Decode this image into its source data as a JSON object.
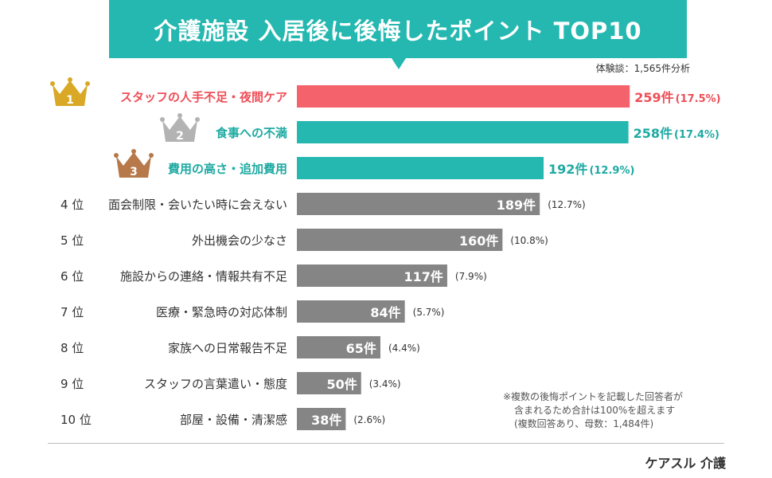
{
  "header": {
    "title": "介護施設 入居後に後悔したポイント TOP10",
    "sample": "体験談：1,565件分析"
  },
  "chart_data": {
    "type": "bar",
    "orientation": "horizontal",
    "title": "介護施設 入居後に後悔したポイント TOP10",
    "rank_suffix": "位",
    "count_unit": "件",
    "categories": [
      "スタッフの人手不足・夜間ケア",
      "食事への不満",
      "費用の高さ・追加費用",
      "面会制限・会いたい時に会えない",
      "外出機会の少なさ",
      "施設からの連絡・情報共有不足",
      "医療・緊急時の対応体制",
      "家族への日常報告不足",
      "スタッフの言葉遣い・態度",
      "部屋・設備・清潔感"
    ],
    "ranks": [
      1,
      2,
      3,
      4,
      5,
      6,
      7,
      8,
      9,
      10
    ],
    "values": [
      259,
      258,
      192,
      189,
      160,
      117,
      84,
      65,
      50,
      38
    ],
    "percent_labels": [
      "(17.5%)",
      "(17.4%)",
      "(12.9%)",
      "(12.7%)",
      "(10.8%)",
      "(7.9%)",
      "(5.7%)",
      "(4.4%)",
      "(3.4%)",
      "(2.6%)"
    ],
    "colors": [
      "#f4636b",
      "#24b8b0",
      "#24b8b0",
      "#858585",
      "#858585",
      "#858585",
      "#858585",
      "#858585",
      "#858585",
      "#858585"
    ],
    "label_colors": [
      "#ee4e57",
      "#1eaaa2",
      "#1eaaa2",
      "#333333",
      "#333333",
      "#333333",
      "#333333",
      "#333333",
      "#333333",
      "#333333"
    ],
    "crown_colors": [
      "#d9a826",
      "#b3b3b3",
      "#b7784a"
    ],
    "xlim": [
      0,
      270
    ]
  },
  "footnote": {
    "lines": [
      "※複数の後悔ポイントを記載した回答者が",
      "含まれるため合計は100%を超えます",
      "(複数回答あり、母数：1,484件)"
    ]
  },
  "brand": "ケアスル 介護"
}
